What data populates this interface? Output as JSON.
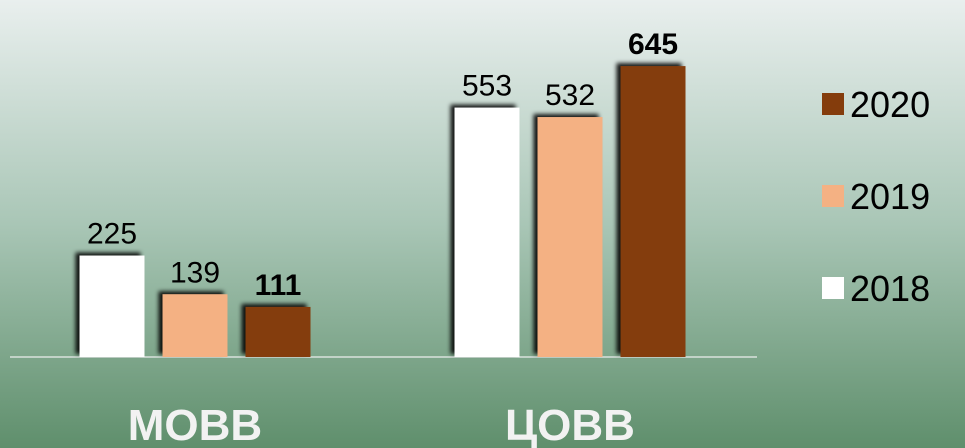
{
  "chart_data": {
    "type": "bar",
    "categories": [
      "МОВВ",
      "ЦОВВ"
    ],
    "series": [
      {
        "name": "2018",
        "color": "#ffffff",
        "values": [
          225,
          553
        ]
      },
      {
        "name": "2019",
        "color": "#f4b183",
        "values": [
          139,
          532
        ]
      },
      {
        "name": "2020",
        "color": "#843c0c",
        "values": [
          111,
          645
        ]
      }
    ],
    "legend": "right"
  }
}
